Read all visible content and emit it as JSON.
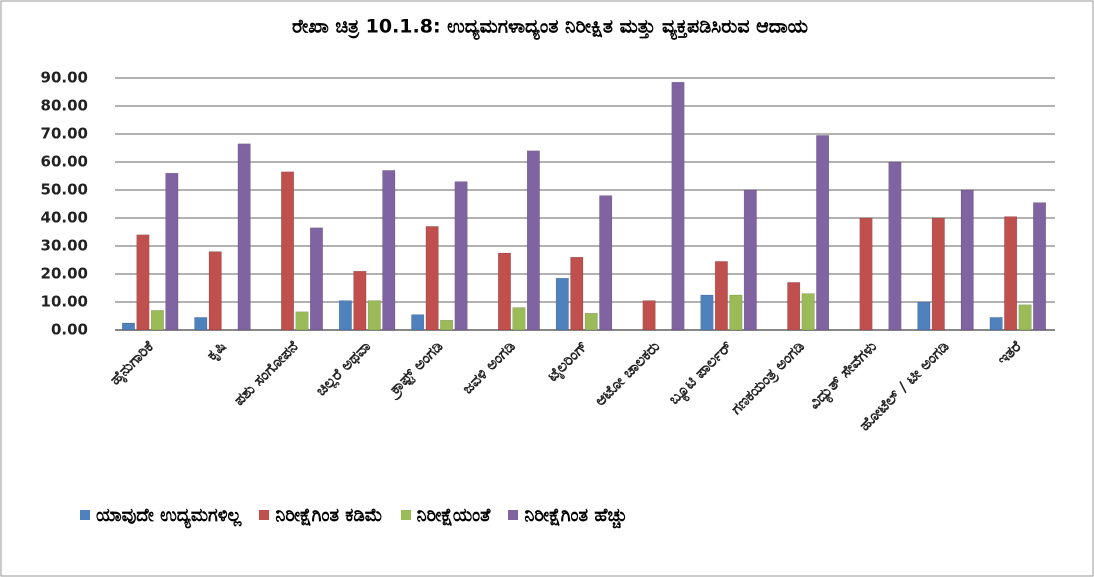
{
  "chart_data": {
    "type": "bar",
    "title": "ರೇಖಾ ಚಿತ್ರ 10.1.8:  ಉದ್ಯಮಗಳಾದ್ಯಂತ ನಿರೀಕ್ಷಿತ ಮತ್ತು ವ್ಯಕ್ತಪಡಿಸಿರುವ ಆದಾಯ",
    "categories": [
      "ಹೈನುಗಾರಿಕೆ",
      "ಕೃಷಿ",
      "ಪಶು ಸಂಗೋಪನೆ",
      "ಚಿಲ್ಲರೆ ಅಥವಾ",
      "ಕ್ರಾಫ್ಟ್ ಅಂಗಡಿ",
      "ಜವಳಿ ಅಂಗಡಿ",
      "ಟೈಲರಿಂಗ್",
      "ಆಟೋ ಚಾಲಕರು",
      "ಬ್ಯೂಟಿ ಪಾರ್ಲರ್",
      "ಗಣಕಯಂತ್ರ ಅಂಗಡಿ",
      "ವಿದ್ಯುತ್ ಸೇವೆಗಳು",
      "ಹೋಟೆಲ್ / ಟೀ ಅಂಗಡಿ",
      "ಇತರೆ"
    ],
    "series": [
      {
        "name": "ಯಾವುದೇ ಉದ್ಯಮಗಳಿಲ್ಲ",
        "color": "#4f81bd",
        "values": [
          2.5,
          4.5,
          0,
          10.5,
          5.5,
          0,
          18.5,
          0,
          12.5,
          0,
          0,
          10,
          4.5
        ]
      },
      {
        "name": "ನಿರೀಕ್ಷೆಗಿಂತ ಕಡಿಮೆ",
        "color": "#c0504d",
        "values": [
          34,
          28,
          56.5,
          21,
          37,
          27.5,
          26,
          10.5,
          24.5,
          17,
          40,
          40,
          40.5
        ]
      },
      {
        "name": "ನಿರೀಕ್ಷೆಯಂತೆ",
        "color": "#9bbb59",
        "values": [
          7,
          0,
          6.5,
          10.5,
          3.5,
          8,
          6,
          0,
          12.5,
          13,
          0,
          0,
          9
        ]
      },
      {
        "name": "ನಿರೀಕ್ಷೆಗಿಂತ ಹೆಚ್ಚು",
        "color": "#8064a2",
        "values": [
          56,
          66.5,
          36.5,
          57,
          53,
          64,
          48,
          88.5,
          50,
          69.5,
          60,
          50,
          45.5
        ]
      }
    ],
    "ylim": [
      0,
      90
    ],
    "yticks": [
      {
        "value": 0,
        "label": "0.00"
      },
      {
        "value": 10,
        "label": "10.00"
      },
      {
        "value": 20,
        "label": "20.00"
      },
      {
        "value": 30,
        "label": "30.00"
      },
      {
        "value": 40,
        "label": "40.00"
      },
      {
        "value": 50,
        "label": "50.00"
      },
      {
        "value": 60,
        "label": "60.00"
      },
      {
        "value": 70,
        "label": "70.00"
      },
      {
        "value": 80,
        "label": "80.00"
      },
      {
        "value": 90,
        "label": "90.00"
      }
    ],
    "grid": true
  }
}
